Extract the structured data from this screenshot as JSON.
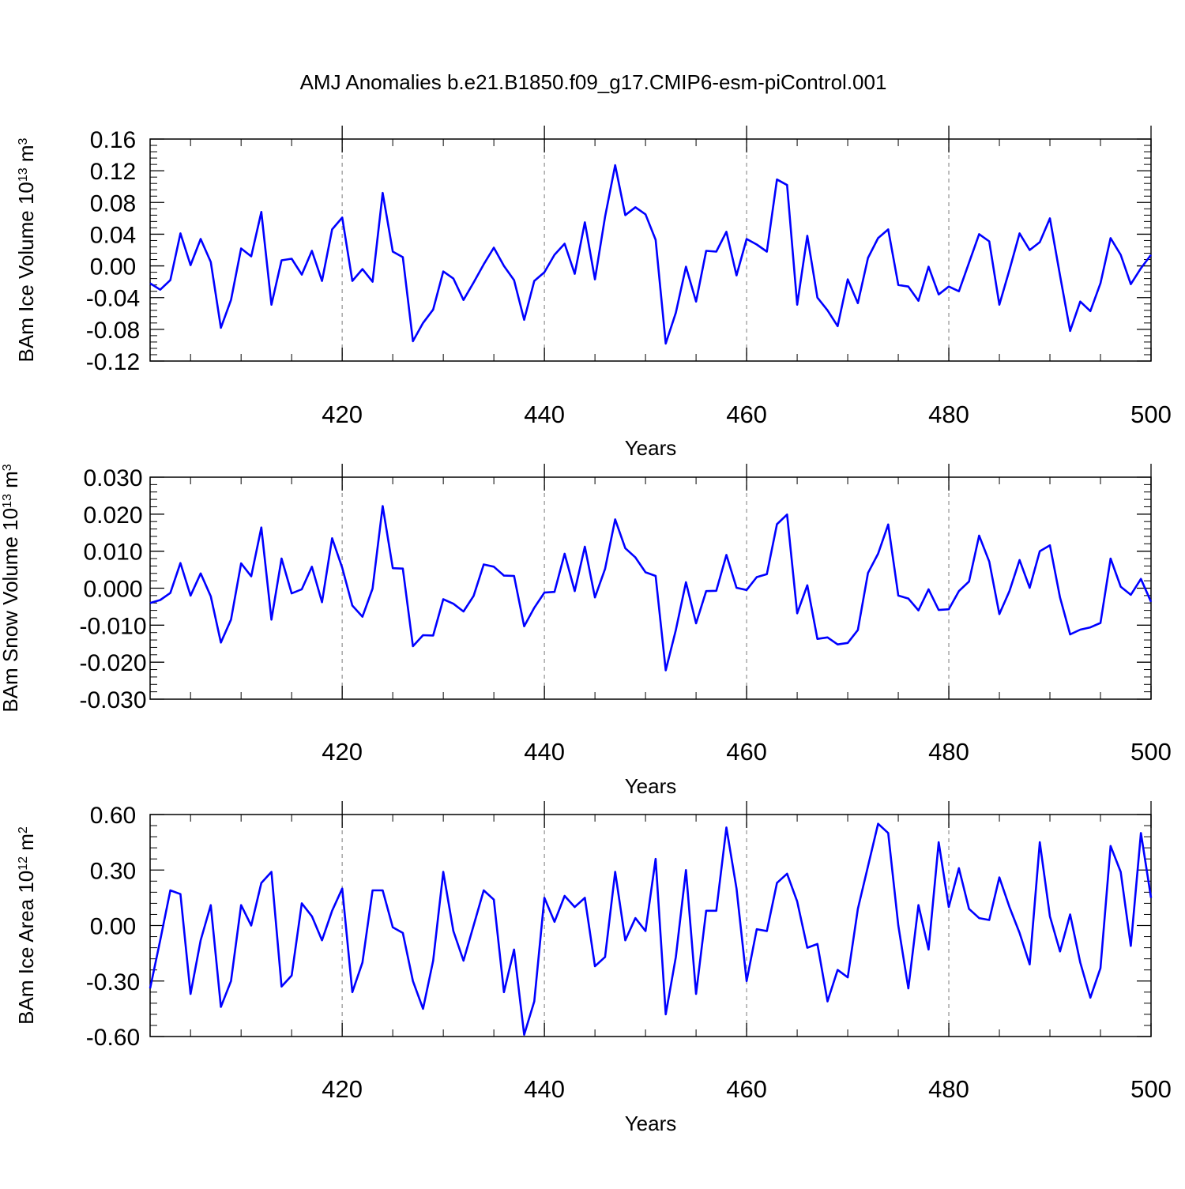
{
  "title": "AMJ Anomalies b.e21.B1850.f09_g17.CMIP6-esm-piControl.001",
  "line_color": "#0000ff",
  "chart_data": [
    {
      "type": "line",
      "xlabel": "Years",
      "ylabel_parts": [
        "BAm Ice Volume 10",
        "13",
        " m",
        "3"
      ],
      "xlim": [
        401,
        500
      ],
      "ylim": [
        -0.12,
        0.16
      ],
      "yticks": [
        -0.12,
        -0.08,
        -0.04,
        0.0,
        0.04,
        0.08,
        0.12,
        0.16
      ],
      "ytick_labels": [
        "-0.12",
        "-0.08",
        "-0.04",
        "0.00",
        "0.04",
        "0.08",
        "0.12",
        "0.16"
      ],
      "xticks": [
        420,
        440,
        460,
        480,
        500
      ],
      "xtick_labels": [
        "420",
        "440",
        "460",
        "480",
        "500"
      ],
      "grid_x": [
        420,
        440,
        460,
        480
      ],
      "x_start": 401,
      "values": [
        -0.022,
        -0.03,
        -0.018,
        0.041,
        0.001,
        0.034,
        0.005,
        -0.078,
        -0.043,
        0.022,
        0.012,
        0.068,
        -0.049,
        0.007,
        0.009,
        -0.011,
        0.019,
        -0.019,
        0.046,
        0.061,
        -0.019,
        -0.004,
        -0.02,
        0.092,
        0.018,
        0.011,
        -0.095,
        -0.072,
        -0.055,
        -0.007,
        -0.016,
        -0.043,
        -0.021,
        0.002,
        0.023,
        0.0,
        -0.018,
        -0.068,
        -0.019,
        -0.008,
        0.014,
        0.028,
        -0.01,
        0.055,
        -0.017,
        0.062,
        0.127,
        0.064,
        0.074,
        0.065,
        0.033,
        -0.098,
        -0.059,
        -0.001,
        -0.045,
        0.019,
        0.018,
        0.043,
        -0.012,
        0.034,
        0.027,
        0.018,
        0.109,
        0.102,
        -0.049,
        0.038,
        -0.04,
        -0.056,
        -0.076,
        -0.017,
        -0.047,
        0.01,
        0.035,
        0.046,
        -0.024,
        -0.026,
        -0.044,
        -0.001,
        -0.036,
        -0.026,
        -0.032,
        0.004,
        0.04,
        0.031,
        -0.049,
        -0.005,
        0.041,
        0.02,
        0.03,
        0.06,
        -0.012,
        -0.082,
        -0.045,
        -0.057,
        -0.022,
        0.035,
        0.014,
        -0.023,
        -0.003,
        0.014
      ]
    },
    {
      "type": "line",
      "xlabel": "Years",
      "ylabel_parts": [
        "BAm Snow Volume 10",
        "13",
        " m",
        "3"
      ],
      "xlim": [
        401,
        500
      ],
      "ylim": [
        -0.03,
        0.03
      ],
      "yticks": [
        -0.03,
        -0.02,
        -0.01,
        0.0,
        0.01,
        0.02,
        0.03
      ],
      "ytick_labels": [
        "-0.030",
        "-0.020",
        "-0.010",
        "0.000",
        "0.010",
        "0.020",
        "0.030"
      ],
      "xticks": [
        420,
        440,
        460,
        480,
        500
      ],
      "xtick_labels": [
        "420",
        "440",
        "460",
        "480",
        "500"
      ],
      "grid_x": [
        420,
        440,
        460,
        480
      ],
      "x_start": 401,
      "values": [
        -0.004,
        -0.0032,
        -0.0013,
        0.0068,
        -0.002,
        0.004,
        -0.0022,
        -0.0147,
        -0.0085,
        0.0067,
        0.0032,
        0.0164,
        -0.0085,
        0.008,
        -0.0014,
        -0.0003,
        0.0058,
        -0.0038,
        0.0135,
        0.0055,
        -0.0047,
        -0.0077,
        -0.0001,
        0.0222,
        0.0054,
        0.0053,
        -0.0157,
        -0.0127,
        -0.0128,
        -0.003,
        -0.0042,
        -0.0063,
        -0.0021,
        0.0064,
        0.0058,
        0.0034,
        0.0033,
        -0.0103,
        -0.0053,
        -0.0012,
        -0.001,
        0.0093,
        -0.0008,
        0.0112,
        -0.0025,
        0.0052,
        0.0186,
        0.0108,
        0.0083,
        0.0043,
        0.0033,
        -0.0222,
        -0.0113,
        0.0016,
        -0.0095,
        -0.0008,
        -0.0007,
        0.009,
        0.0001,
        -0.0005,
        0.003,
        0.0038,
        0.0173,
        0.0199,
        -0.0068,
        0.0008,
        -0.0137,
        -0.0133,
        -0.0152,
        -0.0148,
        -0.0113,
        0.0041,
        0.0093,
        0.0172,
        -0.002,
        -0.0028,
        -0.006,
        -0.0003,
        -0.0059,
        -0.0057,
        -0.0008,
        0.0018,
        0.0142,
        0.0072,
        -0.007,
        -0.0008,
        0.0076,
        0.0001,
        0.01,
        0.0116,
        -0.0025,
        -0.0125,
        -0.0112,
        -0.0106,
        -0.0094,
        0.008,
        0.0004,
        -0.0018,
        0.0025,
        -0.0037
      ]
    },
    {
      "type": "line",
      "xlabel": "Years",
      "ylabel_parts": [
        "BAm Ice Area 10",
        "12",
        " m",
        "2"
      ],
      "xlim": [
        401,
        500
      ],
      "ylim": [
        -0.6,
        0.6
      ],
      "yticks": [
        -0.6,
        -0.3,
        0.0,
        0.3,
        0.6
      ],
      "ytick_labels": [
        "-0.60",
        "-0.30",
        "0.00",
        "0.30",
        "0.60"
      ],
      "xticks": [
        420,
        440,
        460,
        480,
        500
      ],
      "xtick_labels": [
        "420",
        "440",
        "460",
        "480",
        "500"
      ],
      "grid_x": [
        420,
        440,
        460,
        480
      ],
      "x_start": 401,
      "values": [
        -0.34,
        -0.08,
        0.19,
        0.17,
        -0.37,
        -0.08,
        0.11,
        -0.44,
        -0.3,
        0.11,
        0.0,
        0.23,
        0.29,
        -0.33,
        -0.27,
        0.12,
        0.05,
        -0.08,
        0.08,
        0.2,
        -0.36,
        -0.2,
        0.19,
        0.19,
        -0.01,
        -0.04,
        -0.3,
        -0.45,
        -0.19,
        0.29,
        -0.03,
        -0.19,
        0.0,
        0.19,
        0.14,
        -0.36,
        -0.13,
        -0.59,
        -0.41,
        0.15,
        0.02,
        0.16,
        0.1,
        0.15,
        -0.22,
        -0.17,
        0.29,
        -0.08,
        0.04,
        -0.03,
        0.36,
        -0.48,
        -0.17,
        0.3,
        -0.37,
        0.08,
        0.08,
        0.53,
        0.2,
        -0.3,
        -0.02,
        -0.03,
        0.23,
        0.28,
        0.13,
        -0.12,
        -0.1,
        -0.41,
        -0.24,
        -0.28,
        0.09,
        0.32,
        0.55,
        0.5,
        0.0,
        -0.34,
        0.11,
        -0.13,
        0.45,
        0.1,
        0.31,
        0.09,
        0.04,
        0.03,
        0.26,
        0.1,
        -0.04,
        -0.21,
        0.45,
        0.05,
        -0.14,
        0.06,
        -0.2,
        -0.39,
        -0.23,
        0.43,
        0.29,
        -0.11,
        0.5,
        0.15
      ]
    }
  ]
}
